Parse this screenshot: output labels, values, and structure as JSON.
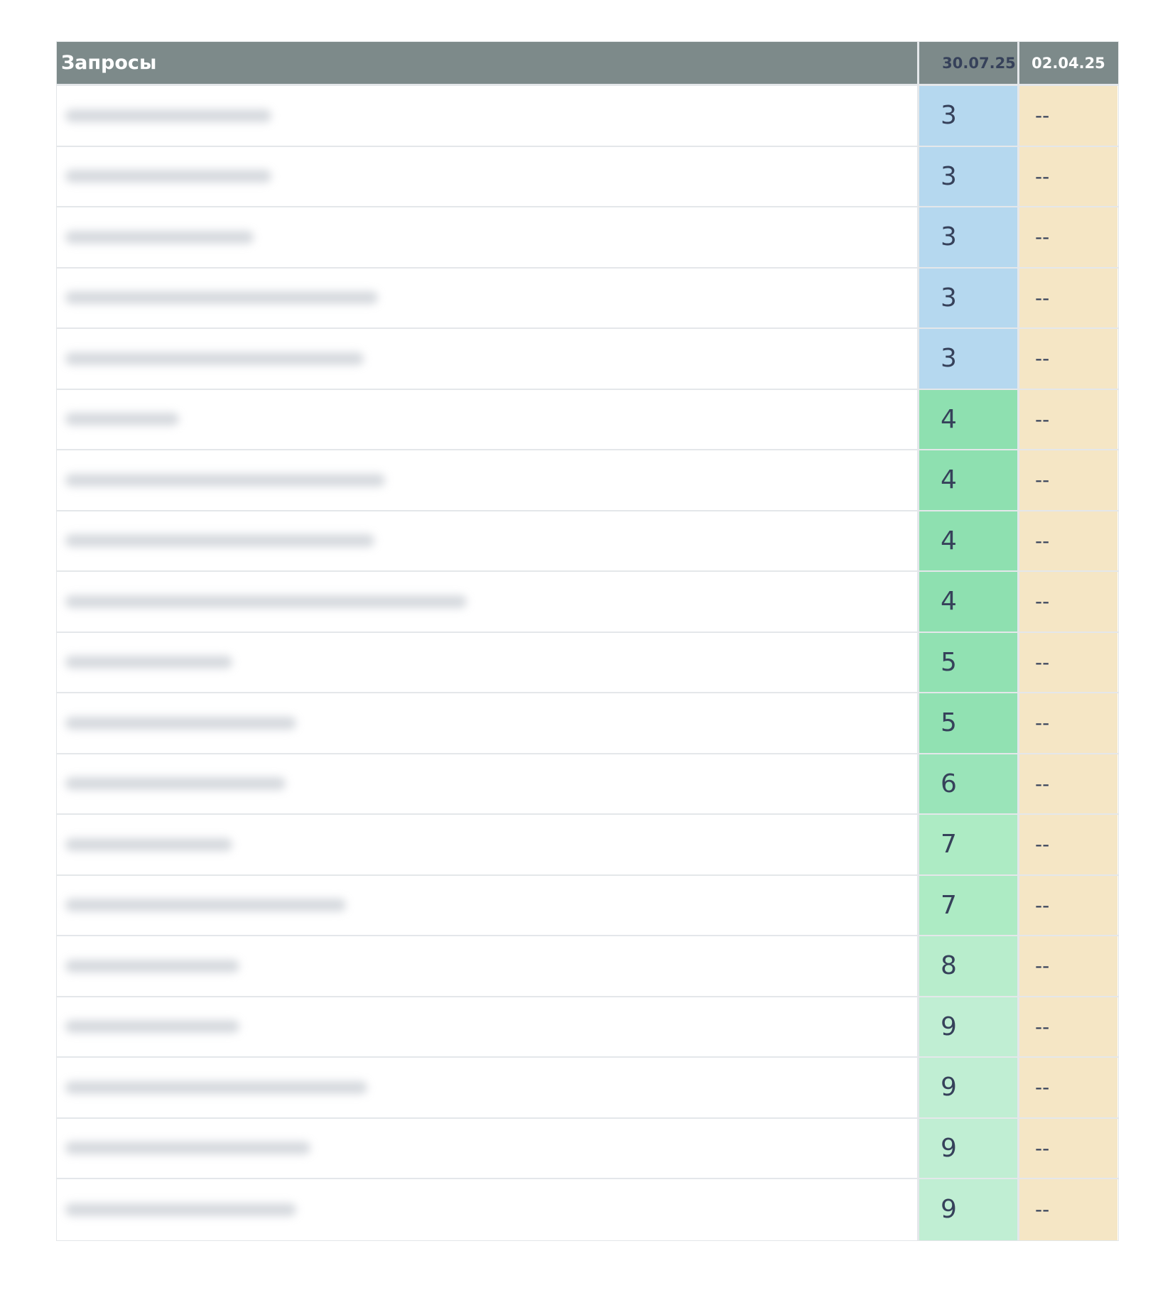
{
  "table": {
    "headers": [
      "Запросы",
      "30.07.25",
      "02.04.25"
    ],
    "rows": [
      {
        "pos1": "3",
        "pos2": "--",
        "color": "#b5d8ef"
      },
      {
        "pos1": "3",
        "pos2": "--",
        "color": "#b5d8ef"
      },
      {
        "pos1": "3",
        "pos2": "--",
        "color": "#b5d8ef"
      },
      {
        "pos1": "3",
        "pos2": "--",
        "color": "#b5d8ef"
      },
      {
        "pos1": "3",
        "pos2": "--",
        "color": "#b5d8ef"
      },
      {
        "pos1": "4",
        "pos2": "--",
        "color": "#8ee0b0"
      },
      {
        "pos1": "4",
        "pos2": "--",
        "color": "#8ee0b0"
      },
      {
        "pos1": "4",
        "pos2": "--",
        "color": "#8ee0b0"
      },
      {
        "pos1": "4",
        "pos2": "--",
        "color": "#8ee0b0"
      },
      {
        "pos1": "5",
        "pos2": "--",
        "color": "#91e1b2"
      },
      {
        "pos1": "5",
        "pos2": "--",
        "color": "#91e1b2"
      },
      {
        "pos1": "6",
        "pos2": "--",
        "color": "#9ae4b9"
      },
      {
        "pos1": "7",
        "pos2": "--",
        "color": "#adebc4"
      },
      {
        "pos1": "7",
        "pos2": "--",
        "color": "#adebc4"
      },
      {
        "pos1": "8",
        "pos2": "--",
        "color": "#b8edcc"
      },
      {
        "pos1": "9",
        "pos2": "--",
        "color": "#c0eed3"
      },
      {
        "pos1": "9",
        "pos2": "--",
        "color": "#c0eed3"
      },
      {
        "pos1": "9",
        "pos2": "--",
        "color": "#c0eed3"
      },
      {
        "pos1": "9",
        "pos2": "--",
        "color": "#c0eed3"
      }
    ]
  },
  "colors": {
    "header_bg": "#7d8a8a",
    "no_data_bg": "#f5e6c5",
    "text": "#36415a"
  }
}
